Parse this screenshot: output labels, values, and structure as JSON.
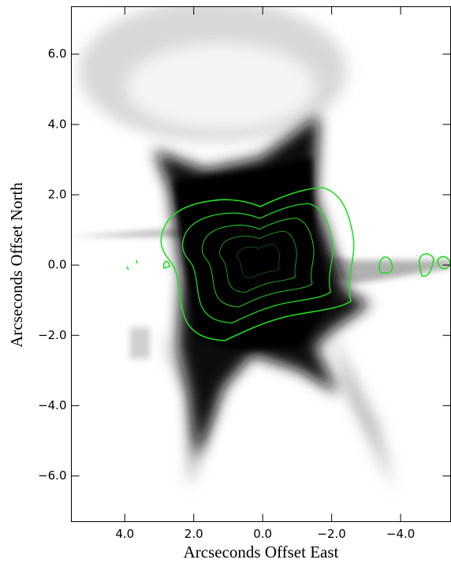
{
  "chart_data": {
    "type": "image",
    "xlabel": "Arcseconds Offset East",
    "ylabel": "Arcseconds Offset North",
    "xlim": [
      5.55,
      -5.45
    ],
    "ylim": [
      -7.3,
      7.35
    ],
    "xticks": [
      {
        "value": 4,
        "label": "4.0"
      },
      {
        "value": 2,
        "label": "2.0"
      },
      {
        "value": 0,
        "label": "0.0"
      },
      {
        "value": -2,
        "label": "−2.0"
      },
      {
        "value": -4,
        "label": "−4.0"
      }
    ],
    "yticks": [
      {
        "value": 6,
        "label": "6.0"
      },
      {
        "value": 4,
        "label": "4.0"
      },
      {
        "value": 2,
        "label": "2.0"
      },
      {
        "value": 0,
        "label": "0.0"
      },
      {
        "value": -2,
        "label": "−2.0"
      },
      {
        "value": -4,
        "label": "−4.0"
      },
      {
        "value": -6,
        "label": "−6.0"
      }
    ],
    "contour_color": "#22dd22"
  }
}
